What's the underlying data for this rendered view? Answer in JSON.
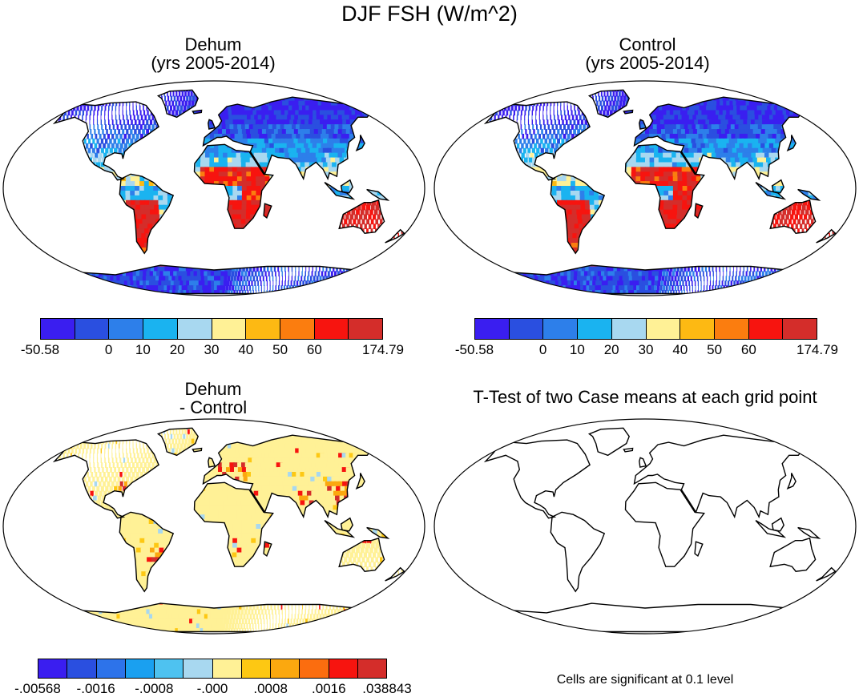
{
  "title": "DJF FSH (W/m^2)",
  "panels": {
    "dehum": {
      "title1": "Dehum",
      "title2": "(yrs 2005-2014)"
    },
    "control": {
      "title1": "Control",
      "title2": "(yrs 2005-2014)"
    },
    "diff": {
      "title1": "Dehum",
      "title2": "- Control"
    },
    "ttest": {
      "title1": "T-Test of two Case means at each grid point",
      "note": "Cells are significant at 0.1 level"
    }
  },
  "colorbars": {
    "abs": {
      "colors": [
        "#3a1ef0",
        "#2a4fe0",
        "#2d7fea",
        "#1ab3f0",
        "#a8d8f0",
        "#fff196",
        "#fdb913",
        "#fb7d0f",
        "#f7140f",
        "#d42d2a"
      ],
      "labels": [
        "-50.58",
        "0",
        "10",
        "20",
        "30",
        "40",
        "50",
        "60",
        "174.79"
      ]
    },
    "diff": {
      "colors": [
        "#3a1ef0",
        "#2a4fe0",
        "#2d73ea",
        "#1aa0f0",
        "#4ec2f0",
        "#a8d8f0",
        "#fff196",
        "#fdc813",
        "#fba80f",
        "#fb6d0f",
        "#f7140f",
        "#d42d2a"
      ],
      "labels": [
        "-.00568",
        "-.0016",
        "-.0008",
        "-.000",
        ".0008",
        ".0016",
        ".038843"
      ]
    }
  },
  "map_legend": {
    "high_flux": "warm colors",
    "low_flux": "cool colors"
  }
}
